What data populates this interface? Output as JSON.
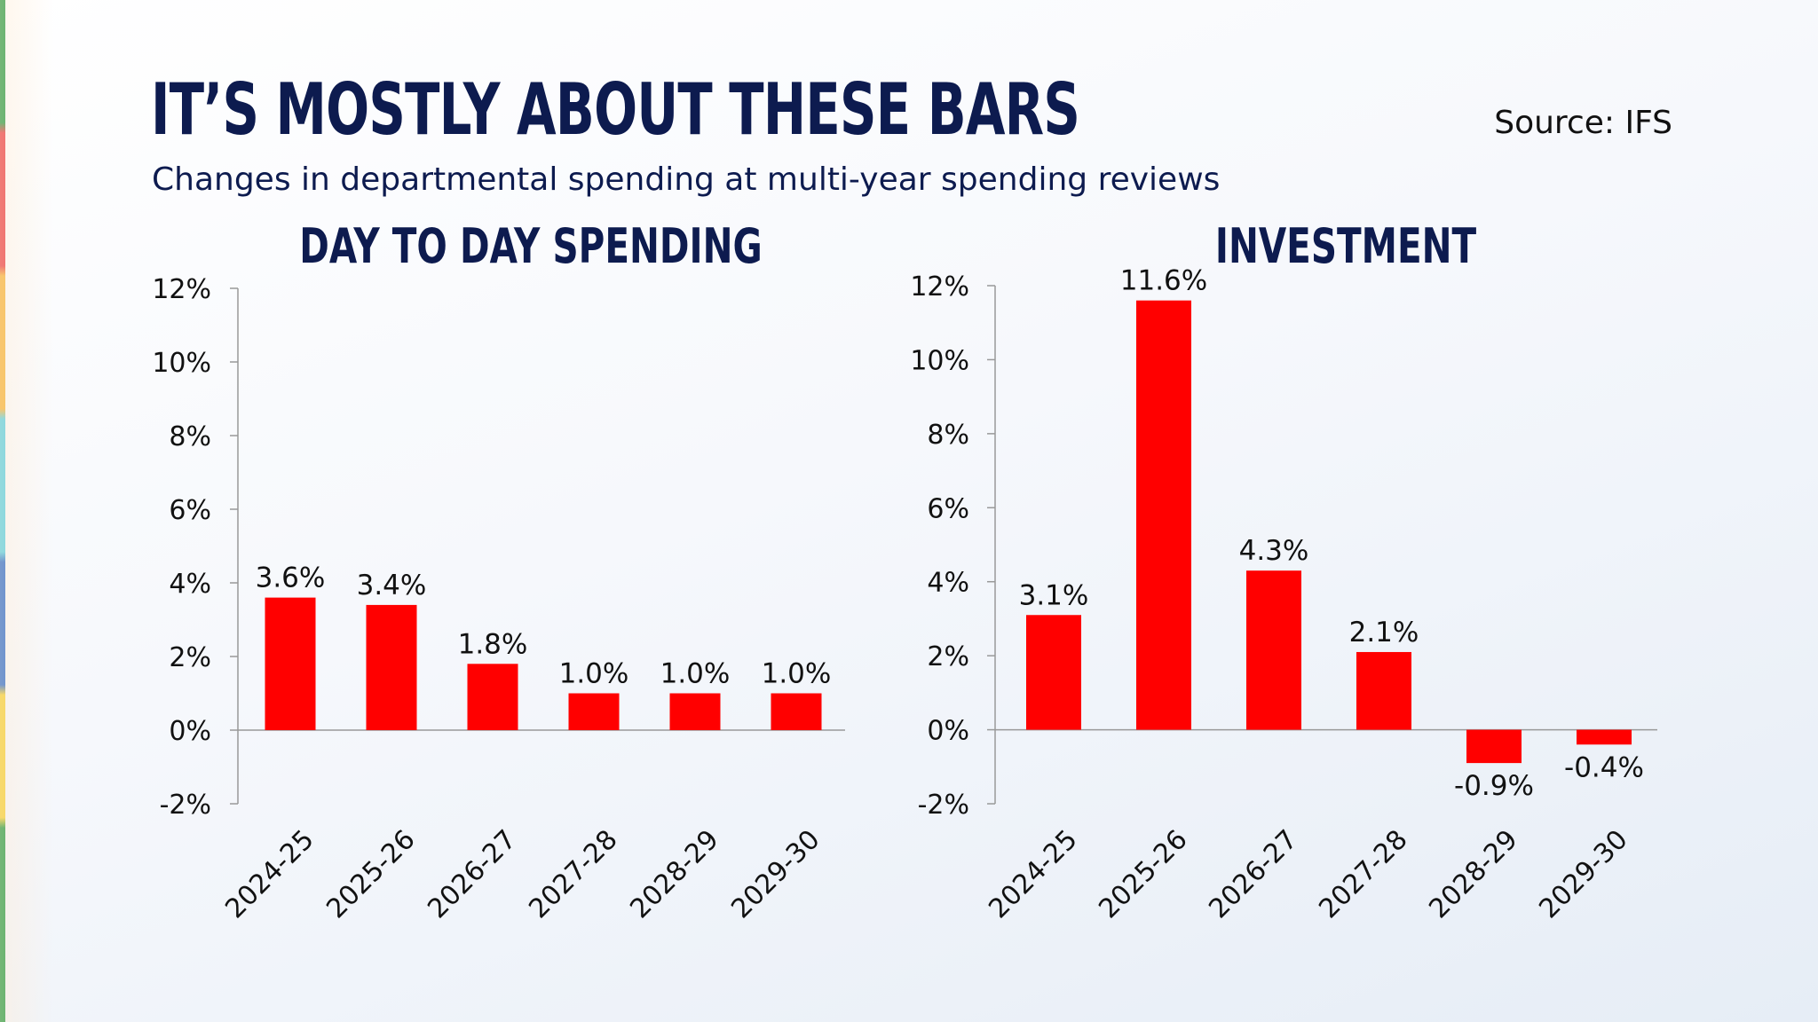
{
  "header": {
    "title": "IT’S MOSTLY ABOUT THESE BARS",
    "subtitle": "Changes in departmental spending at multi-year spending reviews",
    "source": "Source: IFS"
  },
  "colors": {
    "bar": "#ff0000",
    "title": "#0d1b4f",
    "axis": "#999999"
  },
  "chart_data": [
    {
      "type": "bar",
      "title": "DAY TO DAY SPENDING",
      "categories": [
        "2024-25",
        "2025-26",
        "2026-27",
        "2027-28",
        "2028-29",
        "2029-30"
      ],
      "values": [
        3.6,
        3.4,
        1.8,
        1.0,
        1.0,
        1.0
      ],
      "value_labels": [
        "3.6%",
        "3.4%",
        "1.8%",
        "1.0%",
        "1.0%",
        "1.0%"
      ],
      "ylim": [
        -2,
        12
      ],
      "yticks": [
        -2,
        0,
        2,
        4,
        6,
        8,
        10,
        12
      ],
      "ytick_labels": [
        "-2%",
        "0%",
        "2%",
        "4%",
        "6%",
        "8%",
        "10%",
        "12%"
      ],
      "xlabel": "",
      "ylabel": "",
      "grid": false
    },
    {
      "type": "bar",
      "title": "INVESTMENT",
      "categories": [
        "2024-25",
        "2025-26",
        "2026-27",
        "2027-28",
        "2028-29",
        "2029-30"
      ],
      "values": [
        3.1,
        11.6,
        4.3,
        2.1,
        -0.9,
        -0.4
      ],
      "value_labels": [
        "3.1%",
        "11.6%",
        "4.3%",
        "2.1%",
        "-0.9%",
        "-0.4%"
      ],
      "ylim": [
        -2,
        12
      ],
      "yticks": [
        -2,
        0,
        2,
        4,
        6,
        8,
        10,
        12
      ],
      "ytick_labels": [
        "-2%",
        "0%",
        "2%",
        "4%",
        "6%",
        "8%",
        "10%",
        "12%"
      ],
      "xlabel": "",
      "ylabel": "",
      "grid": false
    }
  ]
}
